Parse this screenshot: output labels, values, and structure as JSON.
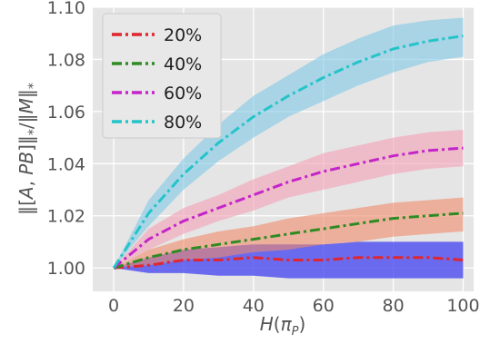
{
  "chart_data": {
    "type": "line",
    "xlabel": "H(π_P)",
    "ylabel": "‖[A, PB]‖_*/‖M‖_*",
    "xlim": [
      -6,
      103
    ],
    "ylim": [
      0.991,
      1.1
    ],
    "xticks": [
      0,
      20,
      40,
      60,
      80,
      100
    ],
    "xtick_labels": [
      "0",
      "20",
      "40",
      "60",
      "80",
      "100"
    ],
    "yticks": [
      1.0,
      1.02,
      1.04,
      1.06,
      1.08,
      1.1
    ],
    "ytick_labels": [
      "1.00",
      "1.02",
      "1.04",
      "1.06",
      "1.08",
      "1.10"
    ],
    "grid": true,
    "background": "#e5e5e5",
    "legend_position": "top-left",
    "x": [
      0,
      10,
      20,
      30,
      40,
      50,
      60,
      70,
      80,
      90,
      100
    ],
    "series": [
      {
        "name": "20%",
        "color": "#e0262f",
        "band_color": "#4b4bf0",
        "band_opacity": 0.8,
        "values": [
          1.0,
          1.001,
          1.003,
          1.003,
          1.004,
          1.003,
          1.003,
          1.004,
          1.004,
          1.004,
          1.003
        ],
        "lower": [
          1.0,
          0.998,
          0.998,
          0.997,
          0.997,
          0.996,
          0.996,
          0.996,
          0.996,
          0.996,
          0.996
        ],
        "upper": [
          1.0,
          1.004,
          1.007,
          1.008,
          1.009,
          1.009,
          1.009,
          1.01,
          1.01,
          1.01,
          1.01
        ]
      },
      {
        "name": "40%",
        "color": "#2e8b22",
        "band_color": "#f08a6a",
        "band_opacity": 0.6,
        "values": [
          1.0,
          1.004,
          1.007,
          1.009,
          1.011,
          1.013,
          1.015,
          1.017,
          1.019,
          1.02,
          1.021
        ],
        "lower": [
          1.0,
          1.001,
          1.003,
          1.004,
          1.006,
          1.007,
          1.009,
          1.01,
          1.012,
          1.013,
          1.014
        ],
        "upper": [
          1.0,
          1.007,
          1.011,
          1.014,
          1.016,
          1.019,
          1.021,
          1.023,
          1.025,
          1.026,
          1.027
        ]
      },
      {
        "name": "60%",
        "color": "#c524c9",
        "band_color": "#f3a6b8",
        "band_opacity": 0.65,
        "values": [
          1.0,
          1.011,
          1.018,
          1.023,
          1.028,
          1.033,
          1.037,
          1.04,
          1.043,
          1.045,
          1.046
        ],
        "lower": [
          1.0,
          1.007,
          1.013,
          1.018,
          1.022,
          1.027,
          1.03,
          1.033,
          1.036,
          1.038,
          1.039
        ],
        "upper": [
          1.0,
          1.015,
          1.023,
          1.028,
          1.034,
          1.039,
          1.044,
          1.047,
          1.05,
          1.052,
          1.053
        ]
      },
      {
        "name": "80%",
        "color": "#24c4c9",
        "band_color": "#7fc8e6",
        "band_opacity": 0.6,
        "values": [
          1.0,
          1.021,
          1.036,
          1.048,
          1.058,
          1.066,
          1.073,
          1.079,
          1.084,
          1.087,
          1.089
        ],
        "lower": [
          1.0,
          1.016,
          1.03,
          1.041,
          1.05,
          1.058,
          1.064,
          1.07,
          1.075,
          1.079,
          1.081
        ],
        "upper": [
          1.0,
          1.026,
          1.042,
          1.055,
          1.066,
          1.074,
          1.082,
          1.088,
          1.093,
          1.095,
          1.096
        ]
      }
    ]
  }
}
